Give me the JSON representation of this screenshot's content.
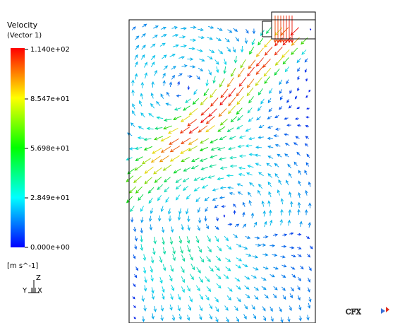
{
  "legend": {
    "title": "Velocity",
    "subtitle": "(Vector 1)",
    "ticks": [
      "1.140e+02",
      "8.547e+01",
      "5.698e+01",
      "2.849e+01",
      "0.000e+00"
    ],
    "units": "[m s^-1]"
  },
  "triad": {
    "z": "Z",
    "y": "Y",
    "x": "X"
  },
  "logo": "CFX"
}
